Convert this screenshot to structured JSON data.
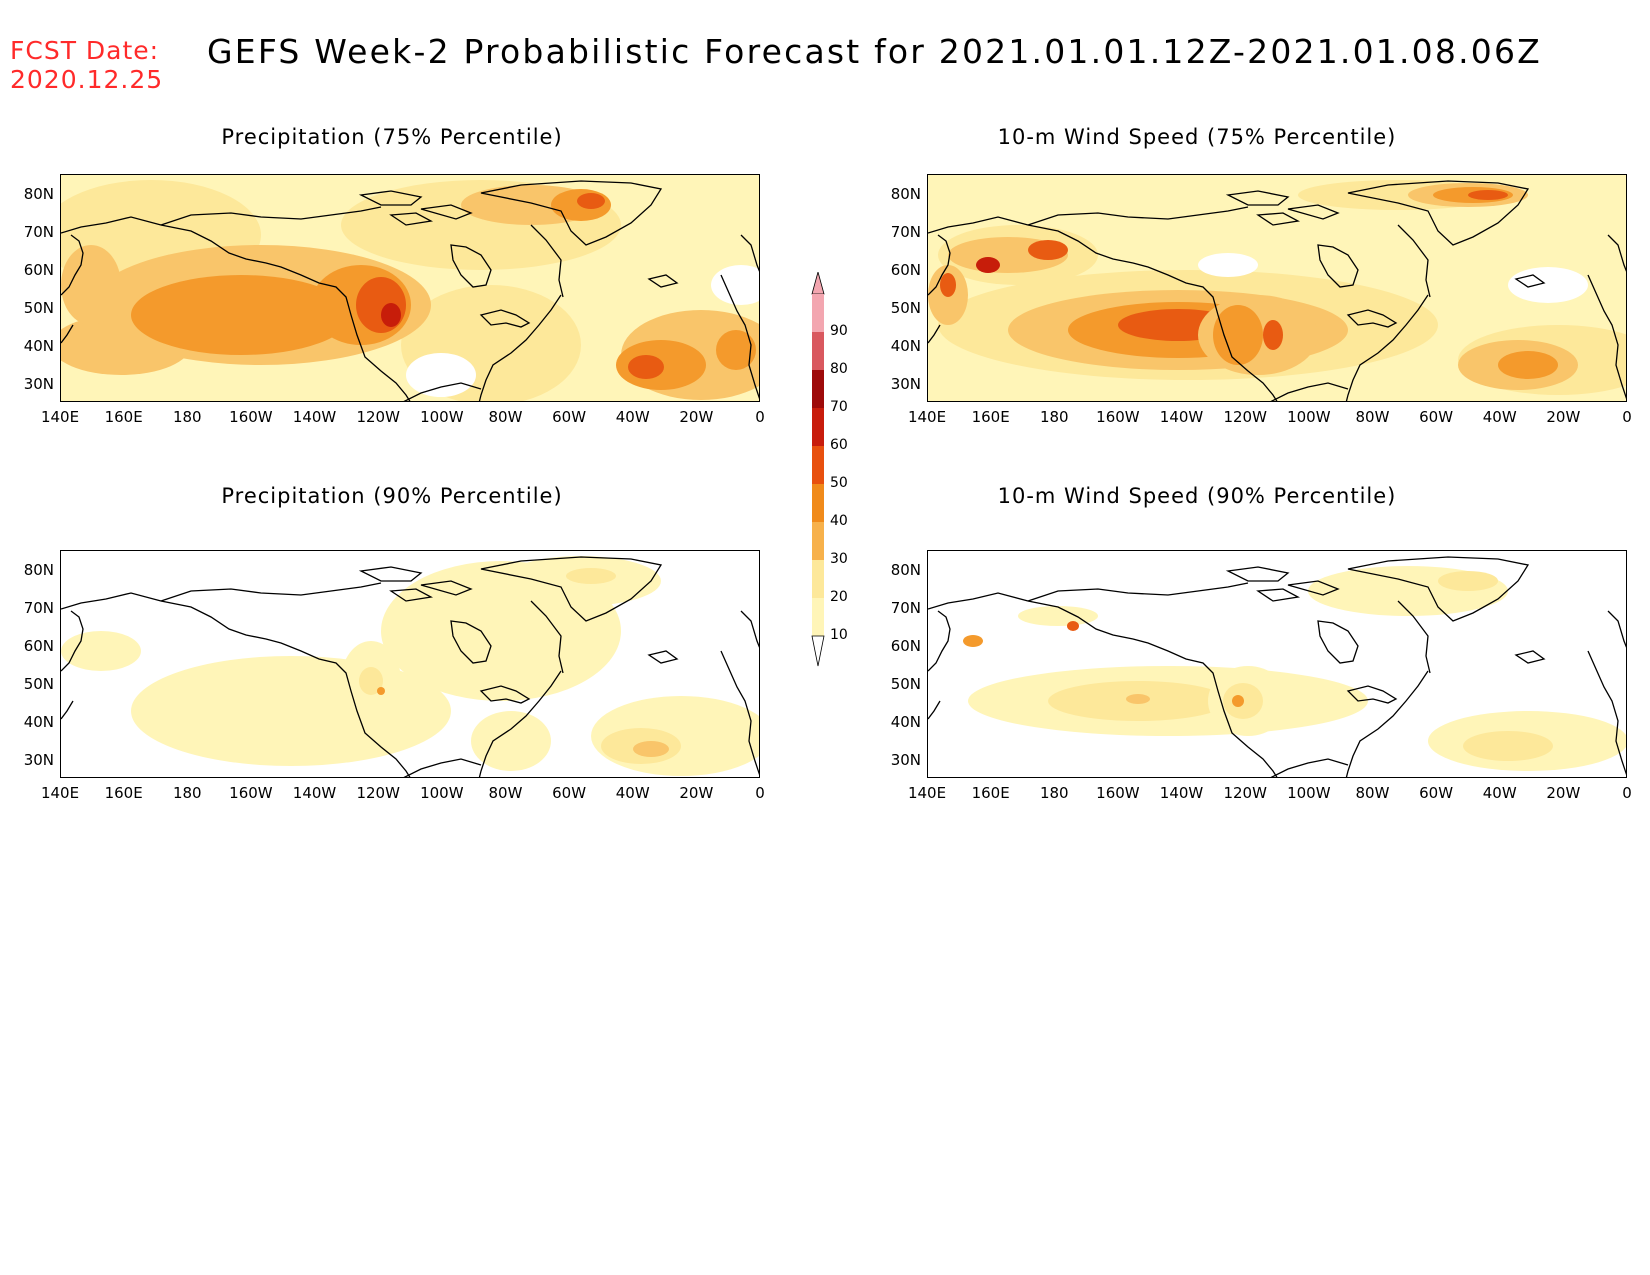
{
  "forecast_date": {
    "label": "FCST Date:",
    "value": "2020.12.25",
    "color": "#ff2a2a"
  },
  "title": "GEFS Week-2 Probabilistic Forecast for 2021.01.01.12Z-2021.01.08.06Z",
  "panels": [
    {
      "id": "precip75",
      "title": "Precipitation (75% Percentile)"
    },
    {
      "id": "wind75",
      "title": "10-m Wind Speed (75% Percentile)"
    },
    {
      "id": "precip90",
      "title": "Precipitation (90% Percentile)"
    },
    {
      "id": "wind90",
      "title": "10-m Wind Speed (90% Percentile)"
    }
  ],
  "lat_labels": [
    "80N",
    "70N",
    "60N",
    "50N",
    "40N",
    "30N"
  ],
  "lon_labels": [
    "140E",
    "160E",
    "180",
    "160W",
    "140W",
    "120W",
    "100W",
    "80W",
    "60W",
    "40W",
    "20W",
    "0"
  ],
  "colorbar": {
    "levels": [
      "10",
      "20",
      "30",
      "40",
      "50",
      "60",
      "70",
      "80",
      "90"
    ],
    "colors": [
      "#fff5b8",
      "#fde89a",
      "#f7b14b",
      "#f08a1a",
      "#e8500e",
      "#c81c0c",
      "#9e0a0a",
      "#d9585f",
      "#f3a6b0"
    ]
  },
  "shading_colors": {
    "c10": "#fff5b8",
    "c20": "#fde89a",
    "c30": "#f9c56a",
    "c40": "#f49a2c",
    "c50": "#e85b12",
    "c60": "#c71d0a"
  }
}
